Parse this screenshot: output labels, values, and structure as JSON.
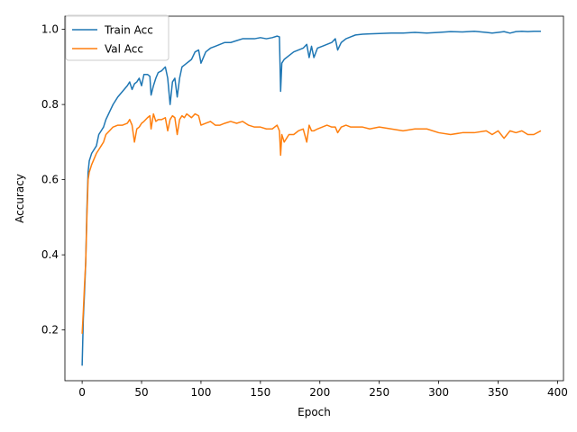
{
  "chart_data": {
    "type": "line",
    "title": "",
    "xlabel": "Epoch",
    "ylabel": "Accuracy",
    "xlim": [
      -14.5,
      405
    ],
    "ylim": [
      0.065,
      1.035
    ],
    "xticks": [
      0,
      50,
      100,
      150,
      200,
      250,
      300,
      350,
      400
    ],
    "yticks": [
      0.2,
      0.4,
      0.6,
      0.8,
      1.0
    ],
    "xtick_labels": [
      "0",
      "50",
      "100",
      "150",
      "200",
      "250",
      "300",
      "350",
      "400"
    ],
    "ytick_labels": [
      "0.2",
      "0.4",
      "0.6",
      "0.8",
      "1.0"
    ],
    "grid": false,
    "legend_position": "top-left",
    "series": [
      {
        "name": "Train Acc",
        "color": "#1f77b4",
        "x": [
          0,
          1,
          2,
          3,
          4,
          5,
          6,
          7,
          8,
          10,
          12,
          14,
          16,
          18,
          20,
          23,
          26,
          30,
          34,
          38,
          40,
          42,
          44,
          46,
          48,
          50,
          52,
          55,
          57,
          58,
          60,
          62,
          64,
          67,
          70,
          72,
          74,
          76,
          78,
          80,
          82,
          84,
          86,
          88,
          90,
          92,
          95,
          98,
          100,
          104,
          108,
          112,
          116,
          120,
          125,
          130,
          135,
          140,
          145,
          150,
          155,
          160,
          164,
          166,
          167,
          168,
          170,
          174,
          178,
          182,
          186,
          189,
          191,
          193,
          195,
          198,
          202,
          206,
          210,
          213,
          215,
          218,
          222,
          226,
          230,
          236,
          242,
          250,
          260,
          270,
          280,
          290,
          300,
          310,
          320,
          330,
          340,
          345,
          350,
          355,
          360,
          365,
          370,
          375,
          380,
          386
        ],
        "y": [
          0.105,
          0.23,
          0.3,
          0.38,
          0.52,
          0.62,
          0.65,
          0.66,
          0.67,
          0.68,
          0.69,
          0.72,
          0.73,
          0.74,
          0.76,
          0.78,
          0.8,
          0.82,
          0.835,
          0.85,
          0.86,
          0.84,
          0.855,
          0.86,
          0.87,
          0.85,
          0.88,
          0.88,
          0.875,
          0.825,
          0.85,
          0.87,
          0.885,
          0.89,
          0.9,
          0.87,
          0.8,
          0.86,
          0.87,
          0.82,
          0.87,
          0.9,
          0.905,
          0.91,
          0.915,
          0.92,
          0.94,
          0.945,
          0.91,
          0.94,
          0.95,
          0.955,
          0.96,
          0.965,
          0.965,
          0.97,
          0.975,
          0.975,
          0.975,
          0.978,
          0.975,
          0.978,
          0.982,
          0.98,
          0.835,
          0.91,
          0.92,
          0.93,
          0.94,
          0.945,
          0.95,
          0.96,
          0.925,
          0.955,
          0.925,
          0.95,
          0.955,
          0.96,
          0.965,
          0.975,
          0.945,
          0.965,
          0.975,
          0.98,
          0.985,
          0.987,
          0.988,
          0.989,
          0.99,
          0.99,
          0.992,
          0.99,
          0.992,
          0.994,
          0.993,
          0.995,
          0.992,
          0.99,
          0.992,
          0.994,
          0.99,
          0.994,
          0.995,
          0.994,
          0.995,
          0.995
        ]
      },
      {
        "name": "Val Acc",
        "color": "#ff7f0e",
        "x": [
          0,
          1,
          2,
          3,
          4,
          5,
          6,
          7,
          8,
          10,
          12,
          14,
          16,
          18,
          20,
          23,
          26,
          30,
          34,
          38,
          40,
          42,
          44,
          46,
          48,
          50,
          52,
          55,
          57,
          58,
          60,
          62,
          64,
          67,
          70,
          72,
          74,
          76,
          78,
          80,
          82,
          84,
          86,
          88,
          90,
          92,
          95,
          98,
          100,
          104,
          108,
          112,
          116,
          120,
          125,
          130,
          135,
          140,
          145,
          150,
          155,
          160,
          164,
          166,
          167,
          168,
          170,
          174,
          178,
          182,
          186,
          189,
          191,
          193,
          195,
          198,
          202,
          206,
          210,
          213,
          215,
          218,
          222,
          226,
          230,
          236,
          242,
          250,
          260,
          270,
          280,
          290,
          300,
          310,
          320,
          330,
          340,
          345,
          350,
          355,
          360,
          365,
          370,
          375,
          380,
          386
        ],
        "y": [
          0.19,
          0.25,
          0.32,
          0.38,
          0.5,
          0.6,
          0.62,
          0.63,
          0.64,
          0.655,
          0.67,
          0.68,
          0.69,
          0.7,
          0.72,
          0.73,
          0.74,
          0.745,
          0.745,
          0.75,
          0.76,
          0.745,
          0.7,
          0.735,
          0.74,
          0.75,
          0.755,
          0.765,
          0.77,
          0.735,
          0.775,
          0.755,
          0.76,
          0.76,
          0.765,
          0.73,
          0.76,
          0.77,
          0.765,
          0.72,
          0.76,
          0.77,
          0.765,
          0.775,
          0.77,
          0.765,
          0.775,
          0.77,
          0.745,
          0.75,
          0.755,
          0.745,
          0.745,
          0.75,
          0.755,
          0.75,
          0.755,
          0.745,
          0.74,
          0.74,
          0.735,
          0.735,
          0.745,
          0.73,
          0.665,
          0.72,
          0.7,
          0.72,
          0.72,
          0.73,
          0.735,
          0.7,
          0.745,
          0.73,
          0.73,
          0.735,
          0.74,
          0.745,
          0.74,
          0.74,
          0.725,
          0.74,
          0.745,
          0.74,
          0.74,
          0.74,
          0.735,
          0.74,
          0.735,
          0.73,
          0.735,
          0.735,
          0.725,
          0.72,
          0.725,
          0.725,
          0.73,
          0.72,
          0.73,
          0.71,
          0.73,
          0.725,
          0.73,
          0.72,
          0.72,
          0.73
        ]
      }
    ]
  }
}
